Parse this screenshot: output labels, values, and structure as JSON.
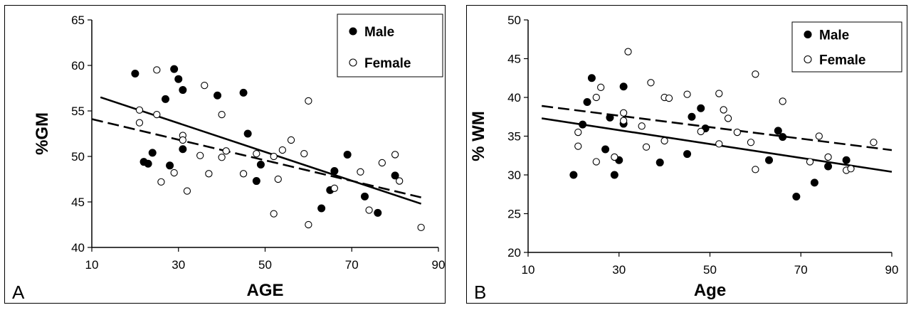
{
  "chart_data": [
    {
      "type": "scatter",
      "panel_label": "A",
      "xlabel": "AGE",
      "ylabel": "%GM",
      "xlim": [
        10,
        90
      ],
      "ylim": [
        40,
        65
      ],
      "xticks": [
        "10",
        "30",
        "50",
        "70",
        "90"
      ],
      "yticks": [
        "40",
        "45",
        "50",
        "55",
        "60",
        "65"
      ],
      "grid": false,
      "legend_position": "top-right",
      "series": [
        {
          "name": "Male",
          "marker": "filled",
          "points": [
            [
              20,
              59.1
            ],
            [
              22,
              49.4
            ],
            [
              23,
              49.2
            ],
            [
              24,
              50.4
            ],
            [
              27,
              56.3
            ],
            [
              28,
              49.0
            ],
            [
              29,
              59.6
            ],
            [
              30,
              58.5
            ],
            [
              31,
              57.3
            ],
            [
              31,
              50.8
            ],
            [
              39,
              56.7
            ],
            [
              45,
              57.0
            ],
            [
              46,
              52.5
            ],
            [
              48,
              47.3
            ],
            [
              49,
              49.1
            ],
            [
              63,
              44.3
            ],
            [
              65,
              46.3
            ],
            [
              66,
              48.4
            ],
            [
              69,
              50.2
            ],
            [
              73,
              45.6
            ],
            [
              76,
              43.8
            ],
            [
              80,
              47.9
            ]
          ]
        },
        {
          "name": "Female",
          "marker": "open",
          "points": [
            [
              21,
              55.1
            ],
            [
              21,
              53.7
            ],
            [
              25,
              59.5
            ],
            [
              25,
              54.6
            ],
            [
              26,
              47.2
            ],
            [
              29,
              48.2
            ],
            [
              31,
              52.3
            ],
            [
              31,
              51.8
            ],
            [
              32,
              46.2
            ],
            [
              35,
              50.1
            ],
            [
              36,
              57.8
            ],
            [
              37,
              48.1
            ],
            [
              40,
              54.6
            ],
            [
              40,
              49.9
            ],
            [
              41,
              50.6
            ],
            [
              45,
              48.1
            ],
            [
              48,
              50.3
            ],
            [
              52,
              50.0
            ],
            [
              52,
              43.7
            ],
            [
              53,
              47.5
            ],
            [
              54,
              50.7
            ],
            [
              56,
              51.8
            ],
            [
              59,
              50.3
            ],
            [
              60,
              56.1
            ],
            [
              60,
              42.5
            ],
            [
              66,
              46.5
            ],
            [
              72,
              48.3
            ],
            [
              74,
              44.1
            ],
            [
              77,
              49.3
            ],
            [
              80,
              50.2
            ],
            [
              81,
              47.3
            ],
            [
              86,
              42.2
            ]
          ]
        }
      ],
      "fit_lines": [
        {
          "series": "Male",
          "style": "solid",
          "x": [
            12,
            86
          ],
          "y": [
            56.5,
            44.8
          ]
        },
        {
          "series": "Female",
          "style": "dashed",
          "x": [
            10,
            86
          ],
          "y": [
            54.1,
            45.5
          ]
        }
      ]
    },
    {
      "type": "scatter",
      "panel_label": "B",
      "xlabel": "Age",
      "ylabel": "% WM",
      "xlim": [
        10,
        90
      ],
      "ylim": [
        20,
        50
      ],
      "xticks": [
        "10",
        "30",
        "50",
        "70",
        "90"
      ],
      "yticks": [
        "20",
        "25",
        "30",
        "35",
        "40",
        "45",
        "50"
      ],
      "grid": false,
      "legend_position": "top-right",
      "series": [
        {
          "name": "Male",
          "marker": "filled",
          "points": [
            [
              20,
              30.0
            ],
            [
              22,
              36.5
            ],
            [
              23,
              39.4
            ],
            [
              24,
              42.5
            ],
            [
              27,
              33.3
            ],
            [
              28,
              37.4
            ],
            [
              29,
              30.0
            ],
            [
              30,
              31.9
            ],
            [
              31,
              41.4
            ],
            [
              31,
              36.6
            ],
            [
              39,
              31.6
            ],
            [
              45,
              32.7
            ],
            [
              46,
              37.5
            ],
            [
              48,
              38.6
            ],
            [
              49,
              36.0
            ],
            [
              63,
              31.9
            ],
            [
              65,
              35.7
            ],
            [
              66,
              34.9
            ],
            [
              69,
              27.2
            ],
            [
              73,
              29.0
            ],
            [
              76,
              31.1
            ],
            [
              80,
              31.9
            ]
          ]
        },
        {
          "name": "Female",
          "marker": "open",
          "points": [
            [
              21,
              35.5
            ],
            [
              21,
              33.7
            ],
            [
              25,
              31.7
            ],
            [
              25,
              40.0
            ],
            [
              26,
              41.3
            ],
            [
              29,
              32.3
            ],
            [
              31,
              38.0
            ],
            [
              31,
              37.0
            ],
            [
              32,
              45.9
            ],
            [
              35,
              36.3
            ],
            [
              36,
              33.6
            ],
            [
              37,
              41.9
            ],
            [
              40,
              40.0
            ],
            [
              40,
              34.4
            ],
            [
              41,
              39.9
            ],
            [
              45,
              40.4
            ],
            [
              48,
              35.6
            ],
            [
              52,
              40.5
            ],
            [
              52,
              34.0
            ],
            [
              53,
              38.4
            ],
            [
              54,
              37.3
            ],
            [
              56,
              35.5
            ],
            [
              59,
              34.2
            ],
            [
              60,
              43.0
            ],
            [
              60,
              30.7
            ],
            [
              66,
              39.5
            ],
            [
              72,
              31.7
            ],
            [
              74,
              35.0
            ],
            [
              76,
              32.3
            ],
            [
              80,
              30.6
            ],
            [
              81,
              30.8
            ],
            [
              86,
              34.2
            ]
          ]
        }
      ],
      "fit_lines": [
        {
          "series": "Male",
          "style": "solid",
          "x": [
            13,
            90
          ],
          "y": [
            37.3,
            30.4
          ]
        },
        {
          "series": "Female",
          "style": "dashed",
          "x": [
            13,
            90
          ],
          "y": [
            38.9,
            33.2
          ]
        }
      ]
    }
  ],
  "legend": {
    "male_label": "Male",
    "female_label": "Female"
  }
}
